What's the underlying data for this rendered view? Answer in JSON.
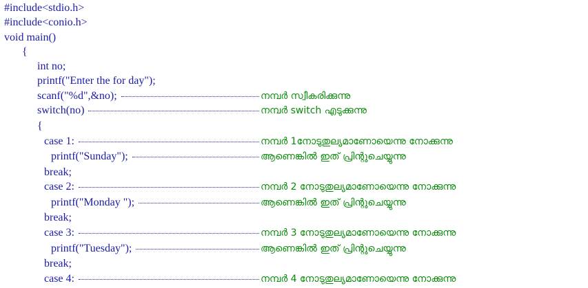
{
  "lines": [
    {
      "code": "#include<stdio.h>"
    },
    {
      "code": "#include<conio.h>"
    },
    {
      "code": "void main()"
    },
    {
      "code": "{"
    },
    {
      "code": "int no;"
    },
    {
      "code": "printf(\"Enter the for day\");"
    },
    {
      "code": "scanf(\"%d\",&no);",
      "comment": "നമ്പർ സ്വീകരിക്കുന്നു"
    },
    {
      "code": "switch(no)",
      "comment": "നമ്പർ switch എടുക്കുന്നു"
    },
    {
      "code": "{"
    },
    {
      "code": "case 1:",
      "comment": "നമ്പർ 1നോടുതുല്യമാണോയെന്നു നോക്കുന്നു"
    },
    {
      "code": "printf(\"Sunday\");",
      "comment": "ആണെങ്കിൽ ഇത് പ്രിന്റുചെയ്യുന്നു"
    },
    {
      "code": "break;"
    },
    {
      "code": "case 2:",
      "comment": "നമ്പർ 2 നോടുതുല്യമാണോയെന്നു നോക്കുന്നു"
    },
    {
      "code": "printf(\"Monday \");",
      "comment": "ആണെങ്കിൽ ഇത് പ്രിന്റുചെയ്യുന്നു"
    },
    {
      "code": "break;"
    },
    {
      "code": "case 3:",
      "comment": "നമ്പർ 3 നോടുതുല്യമാണോയെന്നു നോക്കുന്നു"
    },
    {
      "code": "printf(\"Tuesday\");",
      "comment": "ആണെങ്കിൽ ഇത് പ്രിന്റുചെയ്യുന്നു"
    },
    {
      "code": "break;"
    },
    {
      "code": "case 4:",
      "comment": "നമ്പർ 4 നോടുതുല്യമാണോയെന്നു നോക്കുന്നു"
    }
  ]
}
